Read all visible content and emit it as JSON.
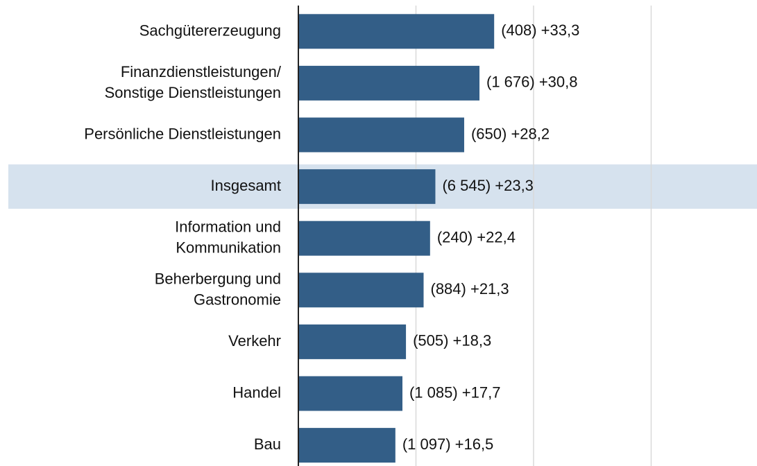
{
  "chart_data": {
    "type": "hbar",
    "categories": [
      "Sachgütererzeugung",
      "Finanzdienstleistungen/\nSonstige Dienstleistungen",
      "Persönliche Dienstleistungen",
      "Insgesamt",
      "Information und\nKommunikation",
      "Beherbergung und\nGastronomie",
      "Verkehr",
      "Handel",
      "Bau"
    ],
    "values": [
      33.3,
      30.8,
      28.2,
      23.3,
      22.4,
      21.3,
      18.3,
      17.7,
      16.5
    ],
    "value_labels": [
      "(408) +33,3",
      "(1 676) +30,8",
      "(650) +28,2",
      "(6 545) +23,3",
      "(240) +22,4",
      "(884) +21,3",
      "(505) +18,3",
      "(1 085) +17,7",
      "(1 097) +16,5"
    ],
    "color": "#335e87",
    "highlight_index": 3,
    "highlight_color": "#d6e2ee",
    "xlim": [
      0,
      78
    ],
    "xticks": [
      0,
      20,
      40,
      60
    ],
    "grid": true
  }
}
